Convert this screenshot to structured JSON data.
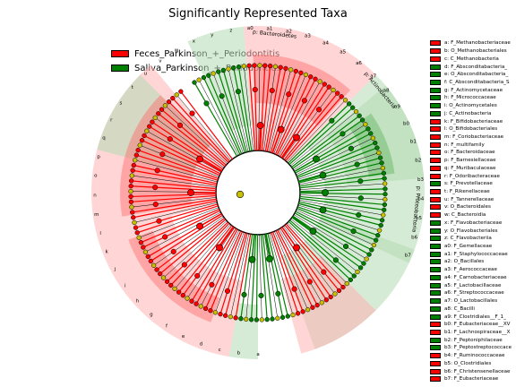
{
  "chart_data": {
    "type": "cladogram",
    "title": "Significantly Represented Taxa",
    "groups": [
      {
        "name": "Feces_Parkinson_+_Periodontitis",
        "color": "#ff0000"
      },
      {
        "name": "Saliva_Parkinson_+_Periodontitis",
        "color": "#008000"
      }
    ],
    "rings": [
      "kingdom",
      "phylum",
      "class",
      "order",
      "family",
      "genus"
    ],
    "clade_labels": [
      {
        "text": "p: Bacteroidetes",
        "angle": -84,
        "color": "#ff0000"
      },
      {
        "text": "p: Actinobacteria",
        "angle": -40,
        "color": "#008000"
      },
      {
        "text": "p: Proteobacteria",
        "angle": 6,
        "color": "#008000"
      }
    ],
    "key": [
      {
        "code": "a",
        "taxon": "F_Methanobacteriaceae",
        "group": 0
      },
      {
        "code": "b",
        "taxon": "O_Methanobacteriales",
        "group": 0
      },
      {
        "code": "c",
        "taxon": "C_Methanobacteria",
        "group": 0
      },
      {
        "code": "d",
        "taxon": "F_Absconditabacteria_",
        "group": 1
      },
      {
        "code": "e",
        "taxon": "O_Absconditabacteria_",
        "group": 1
      },
      {
        "code": "f",
        "taxon": "C_Absconditabacteria_S",
        "group": 1
      },
      {
        "code": "g",
        "taxon": "F_Actinomycetaceae",
        "group": 1
      },
      {
        "code": "h",
        "taxon": "F_Micrococcaceae",
        "group": 1
      },
      {
        "code": "i",
        "taxon": "O_Actinomycetales",
        "group": 1
      },
      {
        "code": "j",
        "taxon": "C_Actinobacteria",
        "group": 1
      },
      {
        "code": "k",
        "taxon": "F_Bifidobacteriaceae",
        "group": 0
      },
      {
        "code": "l",
        "taxon": "O_Bifidobacteriales",
        "group": 0
      },
      {
        "code": "m",
        "taxon": "F_Coriobacteriaceae",
        "group": 0
      },
      {
        "code": "n",
        "taxon": "F_multifamily",
        "group": 0
      },
      {
        "code": "o",
        "taxon": "F_Bacteroidaceae",
        "group": 0
      },
      {
        "code": "p",
        "taxon": "F_Barnesiellaceae",
        "group": 0
      },
      {
        "code": "q",
        "taxon": "F_Muribaculaceae",
        "group": 0
      },
      {
        "code": "r",
        "taxon": "F_Odoribacteraceae",
        "group": 0
      },
      {
        "code": "s",
        "taxon": "F_Prevotellaceae",
        "group": 1
      },
      {
        "code": "t",
        "taxon": "F_Rikenellaceae",
        "group": 0
      },
      {
        "code": "u",
        "taxon": "F_Tannerellaceae",
        "group": 0
      },
      {
        "code": "v",
        "taxon": "O_Bacteroidales",
        "group": 0
      },
      {
        "code": "w",
        "taxon": "C_Bacteroidia",
        "group": 0
      },
      {
        "code": "x",
        "taxon": "F_Flavobacteriaceae",
        "group": 1
      },
      {
        "code": "y",
        "taxon": "O_Flavobacteriales",
        "group": 1
      },
      {
        "code": "z",
        "taxon": "C_Flavobacteriia",
        "group": 1
      },
      {
        "code": "a0",
        "taxon": "F_Gemellaceae",
        "group": 1
      },
      {
        "code": "a1",
        "taxon": "F_Staphylococcaceae",
        "group": 1
      },
      {
        "code": "a2",
        "taxon": "O_Bacillales",
        "group": 1
      },
      {
        "code": "a3",
        "taxon": "F_Aerococcaceae",
        "group": 1
      },
      {
        "code": "a4",
        "taxon": "F_Carnobacteriaceae",
        "group": 1
      },
      {
        "code": "a5",
        "taxon": "F_Lactobacillaceae",
        "group": 1
      },
      {
        "code": "a6",
        "taxon": "F_Streptococcaceae",
        "group": 1
      },
      {
        "code": "a7",
        "taxon": "O_Lactobacillales",
        "group": 1
      },
      {
        "code": "a8",
        "taxon": "C_Bacilli",
        "group": 1
      },
      {
        "code": "a9",
        "taxon": "F_Clostridiales__F_1_",
        "group": 1
      },
      {
        "code": "b0",
        "taxon": "F_Eubacteriaceae__XV",
        "group": 0
      },
      {
        "code": "b1",
        "taxon": "F_Lachnospiraceae__X",
        "group": 0
      },
      {
        "code": "b2",
        "taxon": "F_Peptoniphilaceae",
        "group": 1
      },
      {
        "code": "b3",
        "taxon": "F_Peptostreptococcace",
        "group": 1
      },
      {
        "code": "b4",
        "taxon": "F_Ruminococcaceae",
        "group": 0
      },
      {
        "code": "b5",
        "taxon": "O_Clostridiales",
        "group": 0
      },
      {
        "code": "b6",
        "taxon": "F_Christensenellaceae",
        "group": 0
      },
      {
        "code": "b7",
        "taxon": "F_Eubacteriaceae",
        "group": 0
      }
    ]
  }
}
